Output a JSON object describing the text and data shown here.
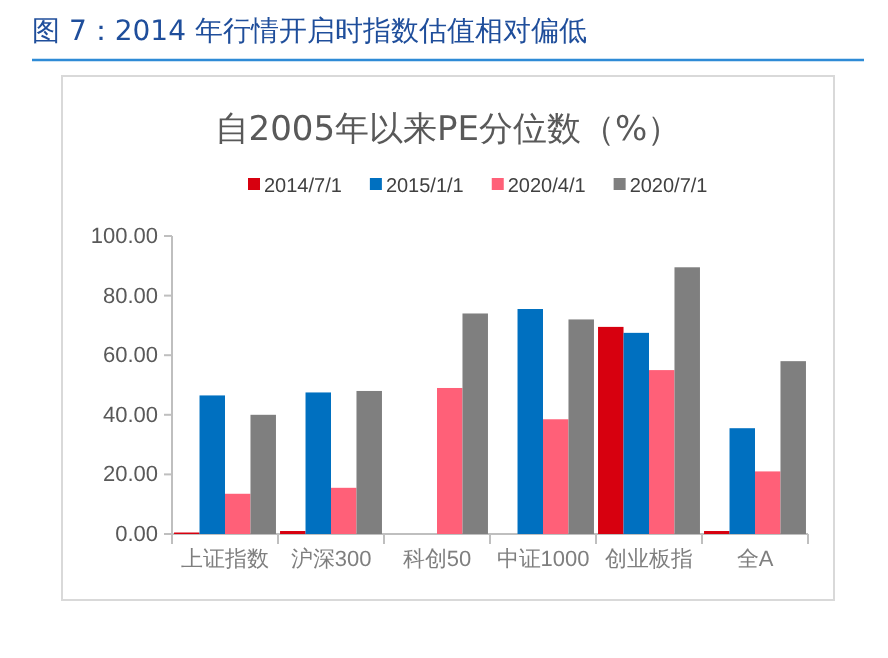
{
  "chart_data": {
    "type": "bar",
    "title": "图 7：2014 年行情开启时指数估值相对偏低",
    "subtitle": "自2005年以来PE分位数（%）",
    "categories": [
      "上证指数",
      "沪深300",
      "科创50",
      "中证1000",
      "创业板指",
      "全A"
    ],
    "series": [
      {
        "name": "2014/7/1",
        "color": "#d7000f",
        "values": [
          0.5,
          1,
          null,
          null,
          69.5,
          1
        ]
      },
      {
        "name": "2015/1/1",
        "color": "#0070c0",
        "values": [
          46.5,
          47.5,
          null,
          75.5,
          67.5,
          35.5
        ]
      },
      {
        "name": "2020/4/1",
        "color": "#ff6078",
        "values": [
          13.5,
          15.5,
          49,
          38.5,
          55,
          21
        ]
      },
      {
        "name": "2020/7/1",
        "color": "#7f7f7f",
        "values": [
          40,
          48,
          74,
          72,
          89.5,
          58
        ]
      }
    ],
    "ylim": [
      0,
      100
    ],
    "yticks": [
      {
        "value": 0,
        "label": "0.00"
      },
      {
        "value": 20,
        "label": "20.00"
      },
      {
        "value": 40,
        "label": "40.00"
      },
      {
        "value": 60,
        "label": "60.00"
      },
      {
        "value": 80,
        "label": "80.00"
      },
      {
        "value": 100,
        "label": "100.00"
      }
    ],
    "grid": false,
    "legend": "top"
  }
}
